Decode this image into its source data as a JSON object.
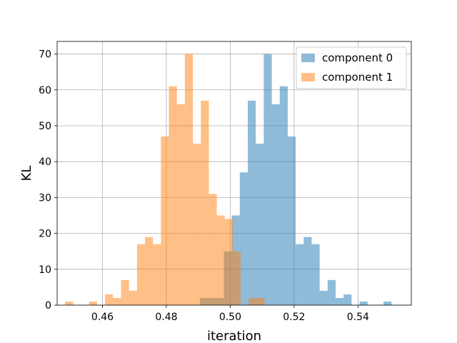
{
  "chart_data": {
    "type": "bar",
    "subtype": "histogram-overlay",
    "xlabel": "iteration",
    "ylabel": "KL",
    "xlim": [
      0.4458,
      0.5567
    ],
    "ylim": [
      0,
      73.5
    ],
    "xticks": [
      0.46,
      0.48,
      0.5,
      0.52,
      0.54
    ],
    "xtick_labels": [
      "0.46",
      "0.48",
      "0.50",
      "0.52",
      "0.54"
    ],
    "yticks": [
      0,
      10,
      20,
      30,
      40,
      50,
      60,
      70
    ],
    "ytick_labels": [
      "0",
      "10",
      "20",
      "30",
      "40",
      "50",
      "60",
      "70"
    ],
    "grid": true,
    "legend_position": "top-right",
    "series": [
      {
        "name": "component 0",
        "color": "#1f77b4",
        "opacity": 0.5,
        "bin_start": 0.4905,
        "bin_width": 0.0025,
        "counts": [
          2,
          2,
          2,
          15,
          25,
          37,
          57,
          45,
          70,
          56,
          61,
          47,
          17,
          19,
          17,
          4,
          7,
          2,
          3,
          0,
          1,
          0,
          0,
          1
        ]
      },
      {
        "name": "component 1",
        "color": "#ff7f0e",
        "opacity": 0.5,
        "bin_start": 0.4483,
        "bin_width": 0.0025,
        "counts": [
          1,
          0,
          0,
          1,
          0,
          3,
          2,
          7,
          4,
          17,
          19,
          17,
          47,
          61,
          56,
          70,
          45,
          57,
          31,
          25,
          24,
          15,
          0,
          2,
          2
        ]
      }
    ]
  }
}
